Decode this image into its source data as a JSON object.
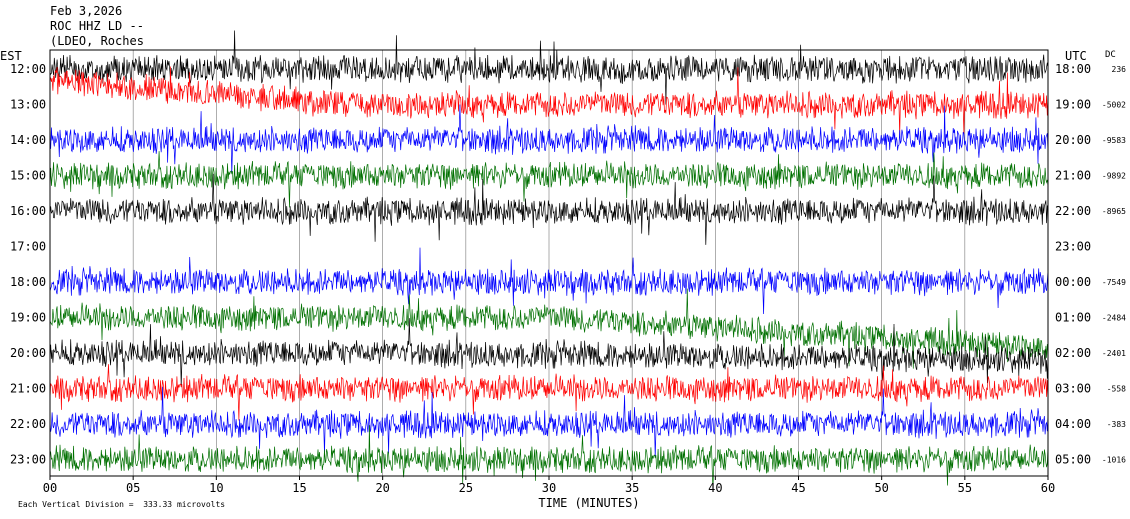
{
  "header": {
    "date": "Feb 3,2026",
    "station": "ROC HHZ LD --",
    "location": "(LDEO, Roches",
    "tz_left": "EST",
    "tz_right": "UTC",
    "dc_label": "DC"
  },
  "footer": {
    "scale_note": "Each Vertical Division =  333.33 microvolts"
  },
  "chart_data": {
    "type": "line",
    "xlabel": "TIME (MINUTES)",
    "x_ticks": [
      "00",
      "05",
      "10",
      "15",
      "20",
      "25",
      "30",
      "35",
      "40",
      "45",
      "50",
      "55",
      "60"
    ],
    "xlim": [
      0,
      60
    ],
    "grid": true,
    "color_cycle": [
      "#000000",
      "#ff0000",
      "#0000ff",
      "#007000"
    ],
    "rows": [
      {
        "est": "12:00",
        "utc": "18:00",
        "dc": "236"
      },
      {
        "est": "13:00",
        "utc": "19:00",
        "dc": "-5002"
      },
      {
        "est": "14:00",
        "utc": "20:00",
        "dc": "-9583"
      },
      {
        "est": "15:00",
        "utc": "21:00",
        "dc": "-9892"
      },
      {
        "est": "16:00",
        "utc": "22:00",
        "dc": "-8965"
      },
      {
        "est": "17:00",
        "utc": "23:00",
        "dc": ""
      },
      {
        "est": "18:00",
        "utc": "00:00",
        "dc": "-7549"
      },
      {
        "est": "19:00",
        "utc": "01:00",
        "dc": "-2484"
      },
      {
        "est": "20:00",
        "utc": "02:00",
        "dc": "-2401"
      },
      {
        "est": "21:00",
        "utc": "03:00",
        "dc": "-558"
      },
      {
        "est": "22:00",
        "utc": "04:00",
        "dc": "-383"
      },
      {
        "est": "23:00",
        "utc": "05:00",
        "dc": "-1016"
      }
    ]
  }
}
